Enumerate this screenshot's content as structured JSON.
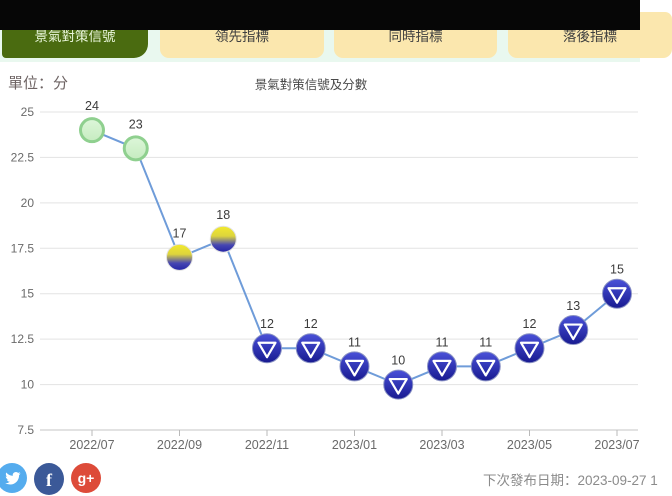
{
  "tabs": {
    "items": [
      {
        "label": "景氣對策信號",
        "active": true
      },
      {
        "label": "領先指標",
        "active": false
      },
      {
        "label": "同時指標",
        "active": false
      },
      {
        "label": "落後指標",
        "active": false
      }
    ]
  },
  "chart": {
    "unit_label": "單位：分",
    "title": "景氣對策信號及分數"
  },
  "chart_data": {
    "type": "line",
    "title": "景氣對策信號及分數",
    "ylabel": "單位：分",
    "x": [
      "2022/07",
      "2022/08",
      "2022/09",
      "2022/10",
      "2022/11",
      "2022/12",
      "2023/01",
      "2023/02",
      "2023/03",
      "2023/04",
      "2023/05",
      "2023/06",
      "2023/07"
    ],
    "values": [
      24,
      23,
      17,
      18,
      12,
      12,
      11,
      10,
      11,
      11,
      12,
      13,
      15
    ],
    "marker_styles": [
      "green",
      "green",
      "yellow-blue",
      "yellow-blue",
      "blue",
      "blue",
      "blue",
      "blue",
      "blue",
      "blue",
      "blue",
      "blue",
      "blue"
    ],
    "x_tick_labels": [
      "2022/07",
      "2022/09",
      "2022/11",
      "2023/01",
      "2023/03",
      "2023/05",
      "2023/07"
    ],
    "y_ticks": [
      7.5,
      10,
      12.5,
      15,
      17.5,
      20,
      22.5,
      25
    ],
    "ylim": [
      7.5,
      26.5
    ],
    "grid": true,
    "legend": false,
    "line_color": "#6f9cd9",
    "marker_colors": {
      "green": "#cdeec8",
      "green_border": "#8fd08f",
      "yellow_blue_top": "#f2ea2d",
      "yellow_blue_bottom": "#2424a6",
      "blue_top": "#4a51d8",
      "blue_bottom": "#181a90"
    }
  },
  "footer": {
    "facebook_glyph": "f",
    "gplus_glyph": "g+",
    "next_release_label": "下次發布日期：2023-09-27 1"
  },
  "colors": {
    "top_bar": "#060606",
    "band_bg": "#e9f8ef",
    "active_tab_bg": "#4a6b10",
    "active_tab_text": "#e9f6da",
    "inactive_tab_bg": "#fbe7ae",
    "inactive_tab_text": "#3f3f3f"
  }
}
